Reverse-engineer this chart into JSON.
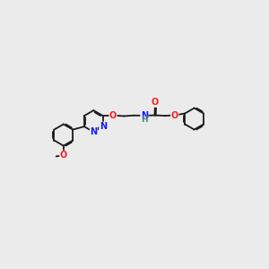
{
  "bg_color": "#ebebeb",
  "bond_color": "#1a1a1a",
  "N_color": "#1a1aff",
  "O_color": "#ff1a1a",
  "NH_color": "#3a8a7a",
  "line_width": 1.3,
  "font_size": 7.0,
  "fig_size": [
    3.0,
    3.0
  ],
  "dpi": 100,
  "xlim": [
    0,
    12
  ],
  "ylim": [
    2,
    8
  ]
}
